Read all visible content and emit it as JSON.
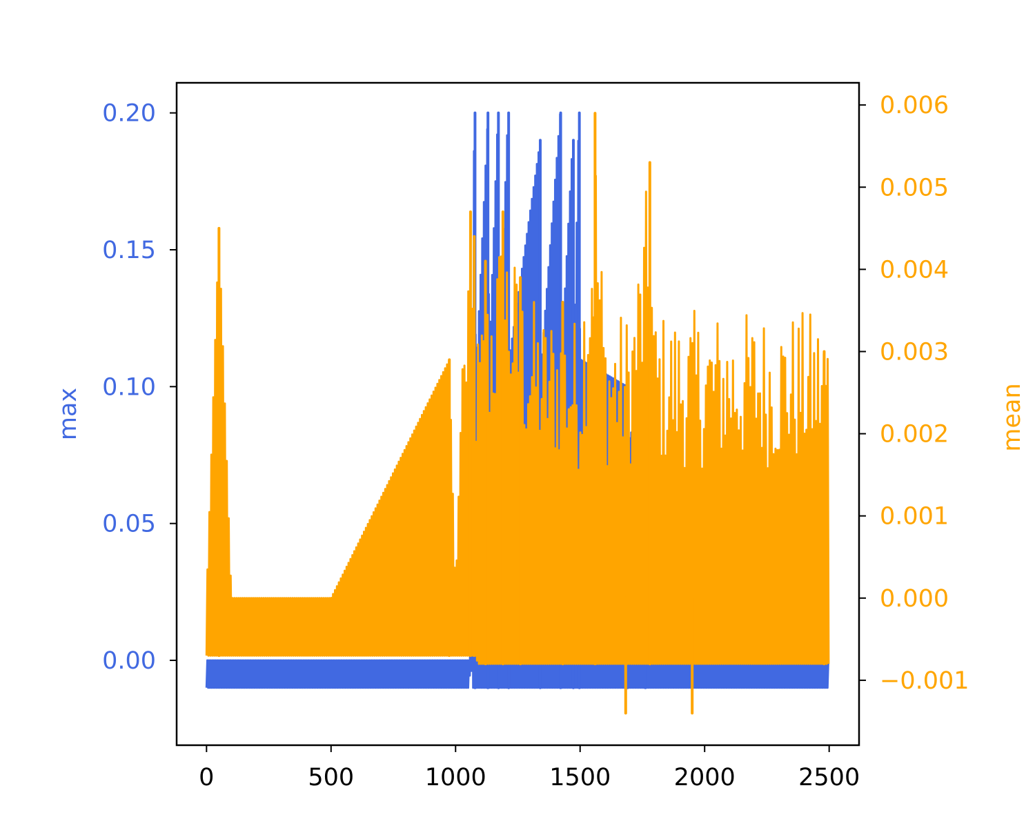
{
  "chart_data": {
    "type": "line",
    "xlim": [
      -120,
      2620
    ],
    "x_ticks": [
      0,
      500,
      1000,
      1500,
      2000,
      2500
    ],
    "x_tick_labels": [
      "0",
      "500",
      "1000",
      "1500",
      "2000",
      "2500"
    ],
    "left_axis": {
      "label": "max",
      "color": "#4169E1",
      "ylim": [
        -0.031,
        0.211
      ],
      "ticks": [
        0.0,
        0.05,
        0.1,
        0.15,
        0.2
      ],
      "tick_labels": [
        "0.00",
        "0.05",
        "0.10",
        "0.15",
        "0.20"
      ]
    },
    "right_axis": {
      "label": "mean",
      "color": "#FFA500",
      "ylim": [
        -0.00179,
        0.00627
      ],
      "ticks": [
        -0.001,
        0.0,
        0.001,
        0.002,
        0.003,
        0.004,
        0.005,
        0.006
      ],
      "tick_labels": [
        "−0.001",
        "0.000",
        "0.001",
        "0.002",
        "0.003",
        "0.004",
        "0.005",
        "0.006"
      ]
    },
    "series": [
      {
        "axis": "left",
        "color": "#4169E1",
        "x": [
          0,
          1000,
          1055,
          1060,
          1070,
          1075,
          1080,
          1085,
          1130,
          1135,
          1170,
          1175,
          1210,
          1215,
          1340,
          1345,
          1420,
          1425,
          1470,
          1475,
          1495,
          1500,
          1690,
          1695,
          1760,
          1765,
          2000,
          2500
        ],
        "min": [
          -0.01,
          -0.01,
          -0.01,
          0.0,
          -0.01,
          -0.01,
          -0.01,
          -0.01,
          -0.01,
          -0.01,
          -0.01,
          -0.01,
          -0.01,
          -0.01,
          -0.01,
          -0.01,
          -0.01,
          -0.01,
          -0.01,
          -0.01,
          -0.01,
          -0.01,
          -0.01,
          -0.01,
          -0.01,
          -0.01,
          -0.01,
          -0.01
        ],
        "max": [
          0.0,
          0.0,
          0.0,
          0.02,
          0.14,
          0.2,
          0.12,
          0.11,
          0.2,
          0.11,
          0.2,
          0.11,
          0.2,
          0.11,
          0.19,
          0.11,
          0.2,
          0.11,
          0.19,
          0.11,
          0.2,
          0.11,
          0.1,
          0.08,
          0.1,
          0.08,
          0.0,
          0.0
        ],
        "spikes": [
          {
            "x": 1078,
            "y": 0.2
          },
          {
            "x": 1130,
            "y": 0.2
          },
          {
            "x": 1172,
            "y": 0.2
          },
          {
            "x": 1213,
            "y": 0.2
          },
          {
            "x": 1340,
            "y": 0.19
          },
          {
            "x": 1422,
            "y": 0.2
          },
          {
            "x": 1473,
            "y": 0.19
          },
          {
            "x": 1497,
            "y": 0.2
          },
          {
            "x": 1690,
            "y": 0.1
          },
          {
            "x": 1762,
            "y": 0.1
          }
        ]
      },
      {
        "axis": "right",
        "color": "#FFA500",
        "x": [
          0,
          50,
          100,
          500,
          975,
          1000,
          1030,
          1050,
          1060,
          1070,
          1080,
          1090,
          1150,
          1200,
          1260,
          1350,
          1420,
          1450,
          1500,
          1560,
          1600,
          1680,
          1700,
          1780,
          1800,
          1950,
          2000,
          2200,
          2400,
          2480,
          2500
        ],
        "min": [
          -0.0007,
          -0.0007,
          -0.0007,
          -0.0007,
          -0.0007,
          -0.0007,
          -0.0007,
          -0.0007,
          -0.0007,
          -0.0007,
          -0.0007,
          -0.0008,
          -0.0008,
          -0.0008,
          -0.0008,
          -0.0008,
          -0.0008,
          -0.0008,
          -0.0008,
          -0.0008,
          -0.0008,
          -0.0008,
          -0.0008,
          -0.0008,
          -0.0008,
          -0.0008,
          -0.0008,
          -0.0008,
          -0.0008,
          -0.0008,
          -0.0008
        ],
        "max": [
          0.0,
          0.0045,
          0.0,
          0.0,
          0.0029,
          0.0,
          0.003,
          0.0047,
          0.0039,
          0.0044,
          0.0035,
          0.0033,
          0.0042,
          0.0047,
          0.0039,
          0.0035,
          0.0036,
          0.0035,
          0.0034,
          0.0059,
          0.0035,
          0.0035,
          0.0035,
          0.0053,
          0.0035,
          0.0035,
          0.0035,
          0.0035,
          0.0035,
          0.0035,
          0.0035
        ],
        "spikes": [
          {
            "x": 50,
            "y": 0.0045
          },
          {
            "x": 975,
            "y": 0.0029
          },
          {
            "x": 1060,
            "y": 0.0047
          },
          {
            "x": 1075,
            "y": 0.0044
          },
          {
            "x": 1120,
            "y": 0.0041
          },
          {
            "x": 1190,
            "y": 0.0047
          },
          {
            "x": 1260,
            "y": 0.0039
          },
          {
            "x": 1430,
            "y": 0.0036
          },
          {
            "x": 1560,
            "y": 0.0059
          },
          {
            "x": 1780,
            "y": 0.0053
          },
          {
            "x": 2480,
            "y": 0.003
          }
        ],
        "dips": [
          {
            "x": 1683,
            "y": -0.0014
          },
          {
            "x": 1950,
            "y": -0.0014
          }
        ]
      }
    ]
  }
}
